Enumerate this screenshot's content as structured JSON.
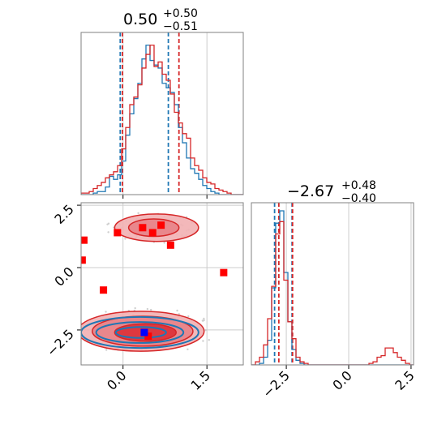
{
  "colors": {
    "red": "#d62728",
    "blue": "#1f77b4",
    "grid": "#cccccc",
    "spine": "#808080",
    "fill_light": "#f2b0b3",
    "fill_mid": "#e88287",
    "fill_dark": "#dd3036"
  },
  "chart_data": [
    {
      "panel": "top-left",
      "type": "histogram",
      "title": "0.50",
      "title_sup": "+0.50",
      "title_sub": "−0.51",
      "xlim": [
        -0.75,
        2.15
      ],
      "grid": true,
      "vlines": [
        {
          "series": "blue",
          "x": -0.05,
          "style": "dashed"
        },
        {
          "series": "blue",
          "x": 0.81,
          "style": "dashed"
        },
        {
          "series": "red",
          "x": -0.01,
          "style": "dashed"
        },
        {
          "series": "red",
          "x": 1.0,
          "style": "dashed"
        }
      ],
      "bin_start": -0.75,
      "bin_width": 0.0725,
      "series": [
        {
          "color": "blue",
          "values": [
            0,
            0,
            0,
            0.01,
            0.02,
            0.02,
            0.05,
            0.12,
            0.1,
            0.13,
            0.22,
            0.39,
            0.53,
            0.63,
            0.73,
            0.89,
            0.98,
            0.88,
            0.85,
            0.83,
            0.73,
            0.7,
            0.67,
            0.59,
            0.44,
            0.34,
            0.24,
            0.17,
            0.14,
            0.1,
            0.06,
            0.04,
            0.02,
            0.01,
            0,
            0,
            0,
            0,
            0,
            0
          ]
        },
        {
          "color": "red",
          "values": [
            0.01,
            0.01,
            0.02,
            0.04,
            0.06,
            0.08,
            0.11,
            0.13,
            0.15,
            0.19,
            0.3,
            0.44,
            0.59,
            0.64,
            0.72,
            0.83,
            0.92,
            0.98,
            0.84,
            0.87,
            0.79,
            0.75,
            0.66,
            0.54,
            0.47,
            0.4,
            0.37,
            0.24,
            0.19,
            0.16,
            0.11,
            0.08,
            0.07,
            0.04,
            0.03,
            0.02,
            0.01,
            0,
            0,
            0
          ]
        }
      ]
    },
    {
      "panel": "bottom-left",
      "type": "scatter",
      "xlim": [
        -0.75,
        2.15
      ],
      "ylim": [
        -3.9,
        2.6
      ],
      "xticks": [
        "0.0",
        "1.5"
      ],
      "xtick_values": [
        0.0,
        1.5
      ],
      "yticks": [
        "2.5",
        "0.0",
        "−2.5"
      ],
      "ytick_values": [
        2.5,
        0.0,
        -2.5
      ],
      "grid": true,
      "red_squares": [
        {
          "x": -0.7,
          "y": 1.1
        },
        {
          "x": -0.73,
          "y": 0.3
        },
        {
          "x": -0.35,
          "y": -0.9
        },
        {
          "x": -0.1,
          "y": 1.4
        },
        {
          "x": 0.35,
          "y": 1.6
        },
        {
          "x": 0.53,
          "y": 1.4
        },
        {
          "x": 0.68,
          "y": 1.7
        },
        {
          "x": 0.85,
          "y": 0.9
        },
        {
          "x": 1.8,
          "y": -0.2
        },
        {
          "x": 0.45,
          "y": -2.75
        }
      ],
      "blue_square": {
        "x": 0.38,
        "y": -2.6
      },
      "red_contours": [
        {
          "cx": 0.32,
          "cy": -2.55,
          "rx": 1.13,
          "ry": 0.8
        },
        {
          "cx": 0.35,
          "cy": -2.55,
          "rx": 0.9,
          "ry": 0.6
        },
        {
          "cx": 0.4,
          "cy": -2.6,
          "rx": 0.55,
          "ry": 0.35
        },
        {
          "cx": 0.6,
          "cy": 1.6,
          "rx": 0.75,
          "ry": 0.55
        },
        {
          "cx": 0.55,
          "cy": 1.6,
          "rx": 0.45,
          "ry": 0.35
        }
      ],
      "blue_contours": [
        {
          "cx": 0.3,
          "cy": -2.6,
          "rx": 1.05,
          "ry": 0.62
        },
        {
          "cx": 0.3,
          "cy": -2.6,
          "rx": 0.78,
          "ry": 0.42
        },
        {
          "cx": 0.32,
          "cy": -2.6,
          "rx": 0.45,
          "ry": 0.22
        }
      ]
    },
    {
      "panel": "bottom-right",
      "type": "histogram",
      "title": "−2.67",
      "title_sup": "+0.48",
      "title_sub": "−0.40",
      "xlim": [
        -3.9,
        2.6
      ],
      "xticks": [
        "−2.5",
        "0.0",
        "2.5"
      ],
      "xtick_values": [
        -2.5,
        0.0,
        2.5
      ],
      "grid": true,
      "vlines": [
        {
          "series": "blue",
          "x": -2.97,
          "style": "dashed"
        },
        {
          "series": "blue",
          "x": -2.27,
          "style": "dashed"
        },
        {
          "series": "red",
          "x": -2.8,
          "style": "dashed"
        },
        {
          "series": "red",
          "x": -2.25,
          "style": "dashed"
        }
      ],
      "bin_start": -3.9,
      "bin_width": 0.1625,
      "series": [
        {
          "color": "blue",
          "values": [
            0,
            0,
            0.01,
            0.05,
            0.16,
            0.5,
            0.92,
            1.0,
            0.6,
            0.28,
            0.1,
            0.03,
            0.01,
            0,
            0,
            0,
            0,
            0,
            0,
            0,
            0,
            0,
            0,
            0,
            0,
            0,
            0,
            0,
            0,
            0,
            0,
            0,
            0,
            0,
            0,
            0,
            0,
            0,
            0,
            0
          ]
        },
        {
          "color": "red",
          "values": [
            0,
            0.02,
            0.05,
            0.13,
            0.3,
            0.51,
            0.85,
            0.93,
            0.55,
            0.28,
            0.17,
            0.05,
            0.02,
            0.01,
            0,
            0,
            0,
            0,
            0,
            0,
            0,
            0,
            0,
            0,
            0,
            0,
            0,
            0,
            0,
            0.01,
            0.02,
            0.05,
            0.06,
            0.11,
            0.11,
            0.08,
            0.05,
            0.03,
            0.01,
            0
          ]
        }
      ]
    }
  ]
}
